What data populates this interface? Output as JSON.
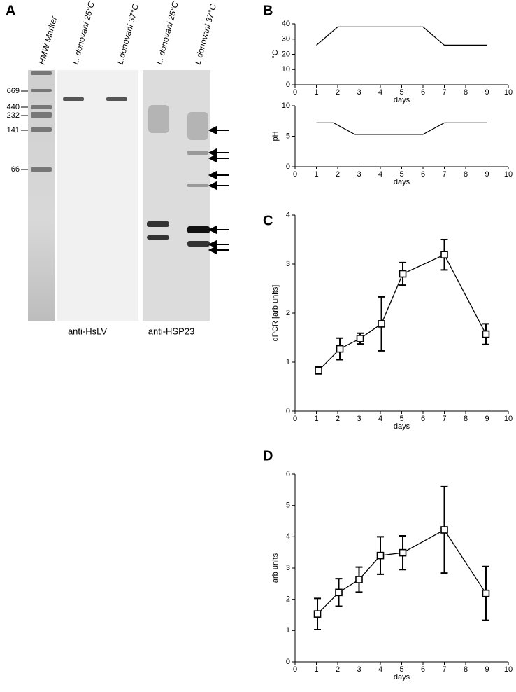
{
  "panels": [
    "A",
    "B",
    "C",
    "D"
  ],
  "gel": {
    "lanes": [
      "HMW Marker",
      "L. donovani 25°C",
      "L.donovani 37°C",
      "L. donovani 25°C",
      "L.donovani 37°C"
    ],
    "markers": [
      "669",
      "440",
      "232",
      "141",
      "66"
    ],
    "captions": [
      "anti-HsLV",
      "anti-HSP23"
    ]
  },
  "chart_data": [
    {
      "type": "line",
      "x_label": "days",
      "y_label": "°C",
      "xlim": [
        0,
        10
      ],
      "xticks": [
        0,
        1,
        2,
        3,
        4,
        5,
        6,
        7,
        8,
        9,
        10
      ],
      "ylim": [
        0,
        40
      ],
      "yticks": [
        0,
        10,
        20,
        30,
        40
      ],
      "x": [
        1,
        2,
        6,
        7,
        9
      ],
      "series": [
        {
          "color": "#000000",
          "values": [
            26,
            38,
            38,
            26,
            26
          ]
        }
      ]
    },
    {
      "type": "line",
      "x_label": "days",
      "y_label": "pH",
      "xlim": [
        0,
        10
      ],
      "xticks": [
        0,
        1,
        2,
        3,
        4,
        5,
        6,
        7,
        8,
        9,
        10
      ],
      "ylim": [
        0,
        10
      ],
      "yticks": [
        0,
        5,
        10
      ],
      "x": [
        1,
        1.8,
        2.8,
        6,
        7,
        9
      ],
      "series": [
        {
          "color": "#000000",
          "values": [
            7.2,
            7.2,
            5.3,
            5.3,
            7.2,
            7.2
          ]
        }
      ]
    },
    {
      "type": "line",
      "x_label": "days",
      "y_label": "qPCR [arb units]",
      "xlim": [
        0,
        10
      ],
      "xticks": [
        0,
        1,
        2,
        3,
        4,
        5,
        6,
        7,
        8,
        9,
        10
      ],
      "ylim": [
        0,
        4
      ],
      "yticks": [
        0,
        1,
        2,
        3,
        4
      ],
      "marker": "square",
      "x": [
        1.1,
        2.1,
        3.05,
        4.05,
        5.05,
        7,
        8.95
      ],
      "series": [
        {
          "color": "#000000",
          "values": [
            0.83,
            1.27,
            1.48,
            1.78,
            2.8,
            3.19,
            1.57
          ],
          "errors": [
            0.07,
            0.22,
            0.11,
            0.55,
            0.23,
            0.31,
            0.21
          ]
        }
      ]
    },
    {
      "type": "line",
      "x_label": "days",
      "y_label": "arb units",
      "xlim": [
        0,
        10
      ],
      "xticks": [
        0,
        1,
        2,
        3,
        4,
        5,
        6,
        7,
        8,
        9,
        10
      ],
      "ylim": [
        0,
        6
      ],
      "yticks": [
        0,
        1,
        2,
        3,
        4,
        5,
        6
      ],
      "marker": "square",
      "x": [
        1.05,
        2.05,
        3,
        4,
        5.05,
        7,
        8.95
      ],
      "series": [
        {
          "color": "#000000",
          "values": [
            1.53,
            2.22,
            2.63,
            3.4,
            3.49,
            4.22,
            2.19
          ],
          "errors": [
            0.5,
            0.44,
            0.4,
            0.6,
            0.54,
            1.38,
            0.86
          ]
        }
      ]
    }
  ]
}
